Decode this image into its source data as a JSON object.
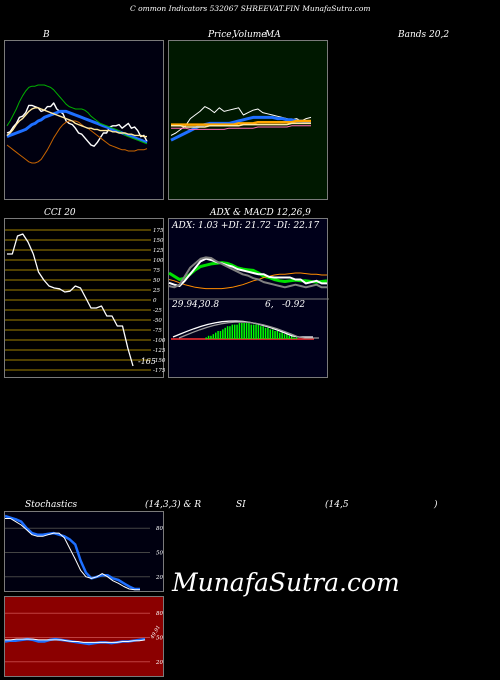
{
  "header": {
    "title": "C ommon Indicators 532067 SHREEVAT.FIN MunafaSutra.com"
  },
  "panels": {
    "bollinger": {
      "left_label": "B",
      "right_label": "Bands 20,2"
    },
    "price_ma": {
      "label_price": "Price,",
      "label_volume": "Volume",
      "label_ma": "MA"
    },
    "cci": {
      "title": "CCI 20",
      "ticks": [
        "175",
        "150",
        "125",
        "100",
        "75",
        "50",
        "25",
        "0",
        "-25",
        "-50",
        "-75",
        "-100",
        "-125",
        "-150",
        "-175"
      ],
      "value_label": "-165"
    },
    "adx_macd": {
      "title": "ADX  & MACD 12,26,9",
      "adx_readout": "ADX: 1.03  +DI: 21.72  -DI: 22.17",
      "macd_readout_1": "29.94,",
      "macd_readout_2": "30.8",
      "macd_readout_3": "6,",
      "macd_readout_4": "-0.92"
    },
    "stochastics": {
      "title_left": "Stochastics",
      "title_mid": "(14,3,3) & R",
      "title_si": "SI",
      "title_params": "(14,5",
      "title_close": ")",
      "ticks": [
        "80",
        "50",
        "20"
      ]
    },
    "rsi": {
      "ticks": [
        "80",
        "50",
        "20"
      ],
      "mark_label": "49.91"
    }
  },
  "watermark": "MunafaSutra.com",
  "colors": {
    "bollinger_bg": "#000010",
    "price_bg": "#001800",
    "cci_bg": "#000000",
    "cci_lines": "#a07f00",
    "macd_bg": "#00001a",
    "stoch_bg": "#000010",
    "rsi_bg": "#8b0000"
  },
  "chart_data": [
    {
      "type": "line",
      "name": "bollinger",
      "series": [
        {
          "color": "#ffffff",
          "values": [
            40,
            41,
            45,
            48,
            53,
            54,
            57,
            63,
            63,
            62,
            61,
            58,
            59,
            62,
            62,
            65,
            60,
            58,
            56,
            50,
            48,
            47,
            44,
            40,
            39,
            36,
            33,
            30,
            29,
            32,
            36,
            40,
            40,
            45,
            46,
            46,
            47,
            44,
            46,
            48,
            44,
            45,
            42,
            37,
            38,
            33
          ]
        },
        {
          "color": "#1e6fff",
          "values": [
            37,
            38,
            39,
            40,
            41,
            42,
            43,
            45,
            47,
            48,
            50,
            51,
            53,
            54,
            55,
            56,
            57,
            58,
            58,
            58,
            57,
            56,
            55,
            54,
            53,
            52,
            51,
            50,
            49,
            48,
            47,
            46,
            45,
            44,
            43,
            42,
            41,
            40,
            39,
            38,
            37,
            36,
            35,
            34,
            33,
            32
          ]
        },
        {
          "color": "#00b000",
          "values": [
            46,
            50,
            55,
            60,
            66,
            71,
            75,
            78,
            79,
            79,
            80,
            80,
            80,
            79,
            78,
            76,
            73,
            70,
            67,
            64,
            62,
            61,
            60,
            60,
            60,
            59,
            57,
            54,
            52,
            50,
            48,
            47,
            46,
            45,
            44,
            43,
            42,
            40,
            38,
            37,
            36,
            35,
            34,
            33,
            32,
            31
          ]
        },
        {
          "color": "#c86400",
          "values": [
            30,
            28,
            26,
            24,
            22,
            20,
            18,
            16,
            15,
            15,
            16,
            18,
            22,
            26,
            31,
            36,
            40,
            44,
            47,
            49,
            50,
            50,
            50,
            49,
            47,
            45,
            44,
            42,
            40,
            38,
            36,
            34,
            32,
            30,
            29,
            28,
            27,
            26,
            26,
            25,
            25,
            25,
            26,
            26,
            26,
            27
          ]
        },
        {
          "color": "#ffe8a0",
          "values": [
            38,
            40,
            43,
            47,
            50,
            52,
            55,
            58,
            60,
            61,
            61,
            60,
            59,
            58,
            57,
            56,
            55,
            54,
            53,
            52,
            51,
            50,
            48,
            47,
            46,
            45,
            44,
            44,
            43,
            43,
            42,
            42,
            42,
            42,
            41,
            41,
            40,
            40,
            40,
            39,
            39,
            38,
            38,
            38,
            37,
            37
          ]
        }
      ]
    },
    {
      "type": "line",
      "name": "price_ma",
      "series": [
        {
          "color": "#ffffff",
          "values": [
            38,
            40,
            43,
            46,
            52,
            55,
            58,
            62,
            60,
            57,
            61,
            58,
            59,
            60,
            61,
            55,
            57,
            59,
            60,
            57,
            56,
            55,
            54,
            53,
            52,
            51,
            52,
            50,
            52,
            53
          ]
        },
        {
          "color": "#1e6fff",
          "values": [
            34,
            36,
            38,
            40,
            42,
            44,
            46,
            47,
            48,
            48,
            48,
            48,
            48,
            49,
            50,
            51,
            52,
            53,
            53,
            53,
            53,
            53,
            52,
            52,
            51,
            51,
            50,
            50,
            49,
            49
          ]
        },
        {
          "color": "#ffa500",
          "values": [
            47,
            47,
            47,
            47,
            47,
            47,
            47,
            47,
            47,
            47,
            47,
            47,
            47,
            47,
            48,
            48,
            48,
            48,
            49,
            49,
            49,
            49,
            49,
            49,
            49,
            49,
            50,
            50,
            50,
            50
          ]
        },
        {
          "color": "#ffe8a0",
          "values": [
            46,
            46,
            46,
            45,
            45,
            45,
            45,
            45,
            46,
            46,
            46,
            46,
            46,
            46,
            46,
            47,
            47,
            47,
            47,
            47,
            47,
            47,
            47,
            47,
            47,
            48,
            48,
            48,
            48,
            48
          ]
        },
        {
          "color": "#ff69b4",
          "values": [
            44,
            44,
            44,
            44,
            43,
            43,
            43,
            43,
            43,
            43,
            43,
            43,
            44,
            44,
            44,
            44,
            44,
            44,
            45,
            45,
            45,
            45,
            45,
            45,
            45,
            46,
            46,
            46,
            46,
            46
          ]
        }
      ]
    },
    {
      "type": "line",
      "name": "cci",
      "ylim": [
        -175,
        175
      ],
      "series": [
        {
          "color": "#ffffff",
          "values": [
            115,
            115,
            160,
            165,
            145,
            115,
            70,
            50,
            35,
            30,
            28,
            20,
            22,
            35,
            30,
            5,
            -20,
            -20,
            -15,
            -40,
            -40,
            -65,
            -65,
            -120,
            -165
          ]
        }
      ]
    },
    {
      "type": "line",
      "name": "adx",
      "series": [
        {
          "color": "#00e000",
          "values": [
            40,
            35,
            30,
            32,
            38,
            45,
            50,
            52,
            54,
            55,
            56,
            55,
            52,
            48,
            46,
            45,
            44,
            40,
            35,
            33,
            30,
            28,
            27,
            28,
            29,
            28,
            28,
            27,
            26,
            27,
            28
          ]
        },
        {
          "color": "#ff8c00",
          "values": [
            30,
            28,
            25,
            22,
            20,
            18,
            17,
            16,
            16,
            16,
            16,
            17,
            18,
            20,
            22,
            25,
            28,
            30,
            33,
            35,
            37,
            38,
            38,
            39,
            40,
            40,
            39,
            38,
            38,
            37,
            37
          ]
        },
        {
          "color": "#ffffff",
          "values": [
            25,
            22,
            20,
            28,
            38,
            48,
            58,
            62,
            60,
            57,
            55,
            52,
            50,
            46,
            44,
            42,
            40,
            38,
            38,
            34,
            33,
            33,
            33,
            33,
            30,
            30,
            24,
            26,
            28,
            24,
            24
          ]
        },
        {
          "color": "#808080",
          "values": [
            20,
            18,
            22,
            35,
            48,
            55,
            62,
            64,
            63,
            58,
            54,
            50,
            46,
            42,
            38,
            36,
            32,
            30,
            26,
            24,
            22,
            20,
            18,
            20,
            22,
            20,
            18,
            20,
            22,
            18,
            18
          ]
        }
      ]
    },
    {
      "type": "bar",
      "name": "macd_histogram",
      "values": [
        0,
        0,
        0,
        0,
        0,
        0,
        0,
        0,
        0,
        0,
        0,
        0,
        0,
        0,
        1,
        2,
        2,
        3,
        4,
        5,
        5,
        6,
        7,
        8,
        8,
        9,
        9,
        9,
        10,
        10,
        10,
        10,
        10,
        9,
        9,
        9,
        9,
        8,
        8,
        7,
        7,
        6,
        6,
        5,
        5,
        4,
        4,
        3,
        3,
        2,
        2,
        1,
        1,
        0,
        0,
        0,
        0,
        0,
        0,
        0
      ]
    },
    {
      "type": "line",
      "name": "stochastics",
      "ylim": [
        0,
        100
      ],
      "series": [
        {
          "color": "#1e6fff",
          "values": [
            95,
            93,
            91,
            88,
            80,
            74,
            72,
            72,
            73,
            74,
            72,
            70,
            66,
            60,
            40,
            25,
            18,
            20,
            22,
            22,
            18,
            16,
            12,
            8,
            5,
            5
          ]
        },
        {
          "color": "#ffffff",
          "values": [
            92,
            92,
            88,
            84,
            78,
            72,
            70,
            70,
            72,
            74,
            74,
            68,
            55,
            42,
            28,
            20,
            18,
            20,
            24,
            20,
            15,
            12,
            8,
            5,
            4,
            4
          ]
        }
      ]
    },
    {
      "type": "line",
      "name": "rsi",
      "ylim": [
        0,
        100
      ],
      "series": [
        {
          "color": "#1e6fff",
          "values": [
            45,
            46,
            46,
            47,
            48,
            47,
            45,
            45,
            47,
            48,
            47,
            46,
            45,
            44,
            43,
            42,
            43,
            44,
            44,
            43,
            44,
            45,
            45,
            46,
            47,
            48
          ]
        },
        {
          "color": "#ffffff",
          "values": [
            47,
            47,
            48,
            48,
            48,
            48,
            47,
            47,
            47,
            47,
            47,
            46,
            45,
            45,
            44,
            44,
            44,
            44,
            44,
            44,
            44,
            45,
            45,
            46,
            46,
            47
          ]
        }
      ]
    }
  ]
}
